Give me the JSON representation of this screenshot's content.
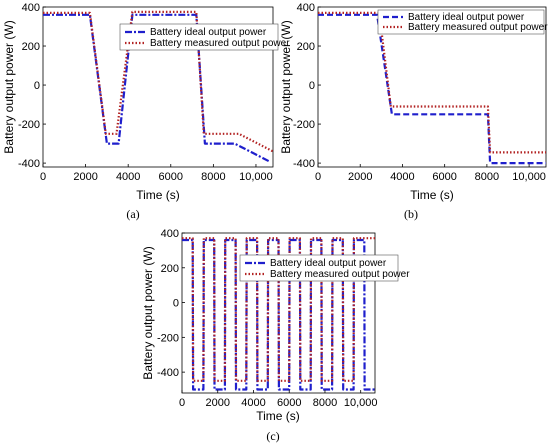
{
  "chart_data": [
    {
      "type": "line",
      "panel_label": "(a)",
      "xlabel": "Time (s)",
      "ylabel": "Battery output power (W)",
      "xlim": [
        0,
        10800
      ],
      "ylim": [
        -420,
        400
      ],
      "xticks": [
        0,
        2000,
        4000,
        6000,
        8000,
        10000
      ],
      "xtick_labels": [
        "0",
        "2000",
        "4000",
        "6000",
        "8000",
        "10,000"
      ],
      "yticks": [
        -400,
        -200,
        0,
        200,
        400
      ],
      "yticklabels": [
        "-400",
        "-200",
        "0",
        "200",
        "400"
      ],
      "legend_position": "top-right",
      "series": [
        {
          "name": "Battery ideal output power",
          "color": "#1f1fcc",
          "dash": "dashdot",
          "x": [
            0,
            2200,
            3000,
            3550,
            4200,
            7200,
            7600,
            9000,
            10600
          ],
          "y": [
            360,
            360,
            -300,
            -300,
            360,
            360,
            -300,
            -300,
            -390
          ]
        },
        {
          "name": "Battery measured output power",
          "color": "#b22222",
          "dash": "dotted",
          "x": [
            0,
            2200,
            2950,
            3450,
            4200,
            7200,
            7550,
            9200,
            10800
          ],
          "y": [
            370,
            370,
            -250,
            -250,
            375,
            375,
            -250,
            -250,
            -340
          ]
        }
      ]
    },
    {
      "type": "line",
      "panel_label": "(b)",
      "xlabel": "Time (s)",
      "ylabel": "Battery output power (W)",
      "xlim": [
        0,
        10800
      ],
      "ylim": [
        -420,
        400
      ],
      "xticks": [
        0,
        2000,
        4000,
        6000,
        8000,
        10000
      ],
      "xtick_labels": [
        "0",
        "2000",
        "4000",
        "6000",
        "8000",
        "10,000"
      ],
      "yticks": [
        -400,
        -200,
        0,
        200,
        400
      ],
      "yticklabels": [
        "-400",
        "-200",
        "0",
        "200",
        "400"
      ],
      "legend_position": "top-right",
      "series": [
        {
          "name": "Battery ideal output power",
          "color": "#1f1fcc",
          "dash": "dashed",
          "x": [
            0,
            2800,
            3500,
            8050,
            8150,
            10800
          ],
          "y": [
            360,
            360,
            -150,
            -150,
            -400,
            -400
          ]
        },
        {
          "name": "Battery measured output power",
          "color": "#b22222",
          "dash": "dotted",
          "x": [
            0,
            2900,
            3450,
            8050,
            8150,
            10800
          ],
          "y": [
            370,
            370,
            -110,
            -110,
            -345,
            -345
          ]
        }
      ]
    },
    {
      "type": "line",
      "panel_label": "(c)",
      "xlabel": "Time (s)",
      "ylabel": "Battery output power (W)",
      "xlim": [
        0,
        10800
      ],
      "ylim": [
        -520,
        400
      ],
      "xticks": [
        0,
        2000,
        4000,
        6000,
        8000,
        10000
      ],
      "xtick_labels": [
        "0",
        "2000",
        "4000",
        "6000",
        "8000",
        "10,000"
      ],
      "yticks": [
        -400,
        -200,
        0,
        200,
        400
      ],
      "yticklabels": [
        "-400",
        "-200",
        "0",
        "200",
        "400"
      ],
      "legend_position": "top-right",
      "series": [
        {
          "name": "Battery ideal output power",
          "color": "#1f1fcc",
          "dash": "dashdot",
          "x": [
            0,
            600,
            620,
            1200,
            1220,
            1800,
            1820,
            2400,
            2420,
            3000,
            3020,
            3600,
            3620,
            4200,
            4220,
            4800,
            4820,
            5400,
            5420,
            6000,
            6020,
            6600,
            6620,
            7200,
            7220,
            7800,
            7820,
            8400,
            8420,
            9000,
            9020,
            9600,
            9620,
            10200,
            10220,
            10800
          ],
          "y": [
            360,
            360,
            -500,
            -500,
            360,
            360,
            -500,
            -500,
            360,
            360,
            -500,
            -500,
            360,
            360,
            -500,
            -500,
            360,
            360,
            -500,
            -500,
            360,
            360,
            -500,
            -500,
            360,
            360,
            -500,
            -500,
            360,
            360,
            -500,
            -500,
            360,
            360,
            -500,
            -500
          ]
        },
        {
          "name": "Battery measured output power",
          "color": "#b22222",
          "dash": "dotted",
          "x": [
            0,
            600,
            620,
            1200,
            1220,
            1800,
            1820,
            2400,
            2420,
            3000,
            3020,
            3600,
            3620,
            4200,
            4220,
            4800,
            4820,
            5400,
            5420,
            6000,
            6020,
            6600,
            6620,
            7200,
            7220,
            7800,
            7820,
            8400,
            8420,
            9000,
            9020,
            9600,
            9620,
            10200,
            10220,
            10800
          ],
          "y": [
            370,
            370,
            -450,
            -450,
            370,
            370,
            -450,
            -450,
            370,
            370,
            -450,
            -450,
            370,
            370,
            -450,
            -450,
            370,
            370,
            -450,
            -450,
            370,
            370,
            -450,
            -450,
            370,
            370,
            -450,
            -450,
            370,
            370,
            -450,
            -450,
            370,
            370,
            370,
            370
          ]
        }
      ]
    }
  ]
}
